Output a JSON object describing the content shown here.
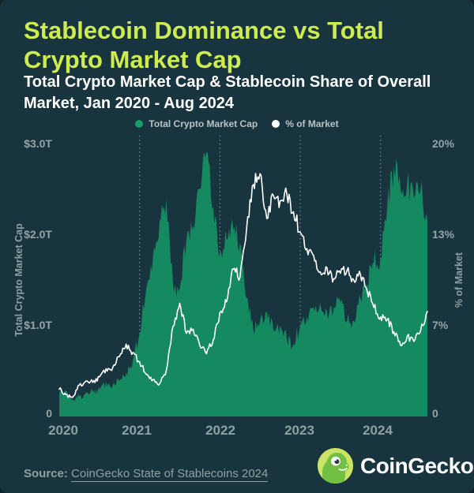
{
  "header": {
    "title_line1": "Stablecoin Dominance vs Total",
    "title_line2": "Crypto Market Cap",
    "subtitle_line1": "Total Crypto Market Cap & Stablecoin Share of Overall",
    "subtitle_line2": "Market, Jan 2020 - Aug 2024"
  },
  "legend": {
    "items": [
      {
        "label": "Total Crypto Market Cap",
        "color": "#1a9d68"
      },
      {
        "label": "% of Market",
        "color": "#ffffff"
      }
    ]
  },
  "axes": {
    "left": {
      "title": "Total Crypto Market Cap",
      "ticks": [
        "$3.0T",
        "$2.0T",
        "$1.0T",
        "0"
      ]
    },
    "right": {
      "title": "% of Market",
      "ticks": [
        "20%",
        "13%",
        "7%",
        "0"
      ]
    },
    "x": {
      "ticks": [
        "2020",
        "2021",
        "2022",
        "2023",
        "2024"
      ]
    }
  },
  "footer": {
    "source_prefix": "Source:",
    "source_link": "CoinGecko State of Stablecoins 2024",
    "brand": "CoinGecko"
  },
  "colors": {
    "background": "#18353f",
    "title_green": "#cdec50",
    "area_green": "#15895f",
    "line_white": "#ffffff",
    "axis_text": "#93a4a6",
    "gridline": "rgba(255,255,255,0.45)",
    "logo_badge": "#cbe465",
    "logo_gecko": "#72bf44"
  },
  "chart_data": {
    "type": "area",
    "subtype": "combo area (left axis) + line (right axis)",
    "x_unit": "month",
    "months": [
      "2020-01",
      "2020-02",
      "2020-03",
      "2020-04",
      "2020-05",
      "2020-06",
      "2020-07",
      "2020-08",
      "2020-09",
      "2020-10",
      "2020-11",
      "2020-12",
      "2021-01",
      "2021-02",
      "2021-03",
      "2021-04",
      "2021-05",
      "2021-06",
      "2021-07",
      "2021-08",
      "2021-09",
      "2021-10",
      "2021-11",
      "2021-12",
      "2022-01",
      "2022-02",
      "2022-03",
      "2022-04",
      "2022-05",
      "2022-06",
      "2022-07",
      "2022-08",
      "2022-09",
      "2022-10",
      "2022-11",
      "2022-12",
      "2023-01",
      "2023-02",
      "2023-03",
      "2023-04",
      "2023-05",
      "2023-06",
      "2023-07",
      "2023-08",
      "2023-09",
      "2023-10",
      "2023-11",
      "2023-12",
      "2024-01",
      "2024-02",
      "2024-03",
      "2024-04",
      "2024-05",
      "2024-06",
      "2024-07",
      "2024-08"
    ],
    "series": [
      {
        "name": "Total Crypto Market Cap",
        "type": "area",
        "axis": "left",
        "unit": "USD trillions",
        "color": "#15895f",
        "values": [
          0.25,
          0.28,
          0.18,
          0.22,
          0.26,
          0.27,
          0.3,
          0.38,
          0.35,
          0.39,
          0.48,
          0.62,
          0.92,
          1.4,
          1.75,
          2.15,
          2.4,
          1.45,
          1.4,
          1.95,
          2.1,
          2.5,
          2.9,
          2.3,
          1.8,
          1.95,
          2.05,
          1.9,
          1.3,
          0.95,
          1.05,
          1.15,
          0.95,
          1.0,
          0.85,
          0.8,
          1.0,
          1.1,
          1.2,
          1.25,
          1.15,
          1.2,
          1.25,
          1.05,
          1.05,
          1.3,
          1.45,
          1.7,
          1.75,
          2.3,
          2.75,
          2.5,
          2.6,
          2.4,
          2.5,
          2.15
        ]
      },
      {
        "name": "% of Market",
        "type": "line",
        "axis": "right",
        "unit": "percent",
        "color": "#ffffff",
        "values": [
          2.0,
          1.6,
          1.4,
          2.3,
          2.6,
          2.5,
          2.9,
          3.5,
          3.6,
          4.4,
          5.3,
          4.7,
          4.0,
          3.1,
          2.7,
          2.4,
          3.4,
          6.6,
          8.3,
          6.1,
          6.4,
          5.2,
          4.6,
          5.6,
          7.6,
          8.4,
          10.8,
          10.2,
          13.8,
          17.0,
          17.8,
          14.5,
          16.2,
          15.8,
          16.3,
          15.0,
          13.5,
          12.3,
          11.8,
          10.6,
          10.9,
          10.1,
          10.5,
          10.7,
          10.0,
          10.4,
          9.2,
          8.0,
          7.3,
          7.1,
          6.2,
          5.2,
          5.9,
          5.5,
          6.3,
          7.7
        ]
      }
    ],
    "left_axis": {
      "label": "Total Crypto Market Cap",
      "min": 0,
      "max": 3.0,
      "tick_values": [
        3.0,
        2.0,
        1.0,
        0
      ]
    },
    "right_axis": {
      "label": "% of Market",
      "min": 0,
      "max": 20,
      "tick_values": [
        20,
        13.33,
        6.67,
        0
      ]
    },
    "x_gridlines_at": [
      "2021-01",
      "2022-01",
      "2023-01",
      "2024-01"
    ],
    "grid": "vertical dashed only",
    "legend_position": "top center"
  }
}
